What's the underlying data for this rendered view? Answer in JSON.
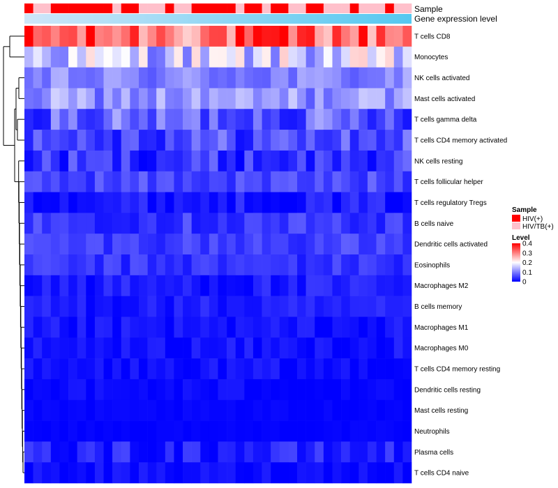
{
  "chart_data": {
    "type": "heatmap",
    "title": "",
    "annotation_tracks": [
      "Sample",
      "Gene expression level"
    ],
    "rows": [
      "T cells CD8",
      "Monocytes",
      "NK cells activated",
      "Mast cells activated",
      "T cells gamma delta",
      "T cells CD4 memory activated",
      "NK cells resting",
      "T cells follicular helper",
      "T cells regulatory  Tregs",
      "B cells naive",
      "Dendritic cells activated",
      "Eosinophils",
      "Macrophages M2",
      "B cells memory",
      "Macrophages M1",
      "Macrophages M0",
      "T cells CD4 memory resting",
      "Dendritic cells resting",
      "Mast cells resting",
      "Neutrophils",
      "Plasma cells",
      "T cells CD4 naive"
    ],
    "n_samples": 44,
    "sample_groups": [
      "HIV(+)",
      "HIV/TB(+)",
      "HIV/TB(+)",
      "HIV(+)",
      "HIV(+)",
      "HIV(+)",
      "HIV(+)",
      "HIV(+)",
      "HIV(+)",
      "HIV(+)",
      "HIV/TB(+)",
      "HIV(+)",
      "HIV(+)",
      "HIV/TB(+)",
      "HIV/TB(+)",
      "HIV/TB(+)",
      "HIV(+)",
      "HIV/TB(+)",
      "HIV/TB(+)",
      "HIV(+)",
      "HIV(+)",
      "HIV(+)",
      "HIV(+)",
      "HIV(+)",
      "HIV/TB(+)",
      "HIV(+)",
      "HIV(+)",
      "HIV/TB(+)",
      "HIV(+)",
      "HIV(+)",
      "HIV/TB(+)",
      "HIV/TB(+)",
      "HIV(+)",
      "HIV(+)",
      "HIV/TB(+)",
      "HIV/TB(+)",
      "HIV/TB(+)",
      "HIV(+)",
      "HIV/TB(+)",
      "HIV/TB(+)",
      "HIV/TB(+)",
      "HIV(+)",
      "HIV/TB(+)",
      "HIV/TB(+)"
    ],
    "row_means": [
      0.32,
      0.16,
      0.1,
      0.115,
      0.075,
      0.06,
      0.04,
      0.055,
      0.02,
      0.045,
      0.05,
      0.04,
      0.02,
      0.02,
      0.012,
      0.012,
      0.008,
      0.006,
      0.003,
      0.002,
      0.025,
      0.01
    ],
    "row_spread": [
      0.09,
      0.08,
      0.04,
      0.05,
      0.06,
      0.05,
      0.045,
      0.03,
      0.025,
      0.03,
      0.025,
      0.025,
      0.025,
      0.02,
      0.02,
      0.02,
      0.02,
      0.015,
      0.005,
      0.004,
      0.03,
      0.015
    ],
    "color_scale": {
      "min": 0,
      "mid": 0.2,
      "max": 0.4,
      "low_color": "#0000ff",
      "mid_color": "#ffffff",
      "high_color": "#ff0000"
    },
    "gene_expression_gradient": [
      "#cfe6f8",
      "#55c8f0"
    ],
    "legend": {
      "sample_title": "Sample",
      "sample_entries": [
        {
          "label": "HIV(+)",
          "color": "#ff0000"
        },
        {
          "label": "HIV/TB(+)",
          "color": "#ffc0cb"
        }
      ],
      "level_title": "Level",
      "level_ticks": [
        {
          "value": 0.4,
          "label": "0.4"
        },
        {
          "value": 0.3,
          "label": "0.3"
        },
        {
          "value": 0.2,
          "label": "0.2"
        },
        {
          "value": 0.1,
          "label": "0.1"
        },
        {
          "value": 0,
          "label": "0"
        }
      ],
      "placement": "right"
    },
    "dendrogram": "rows"
  }
}
